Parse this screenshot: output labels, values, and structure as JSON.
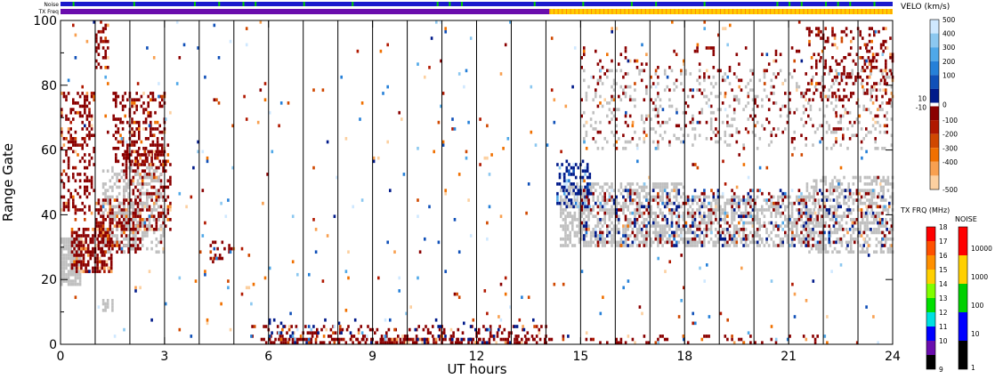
{
  "chart_data": {
    "type": "heatmap",
    "xlabel": "UT hours",
    "ylabel": "Range Gate",
    "xlim": [
      0,
      24
    ],
    "ylim": [
      0,
      100
    ],
    "x_ticks": [
      "0",
      "3",
      "6",
      "9",
      "12",
      "15",
      "18",
      "21",
      "24"
    ],
    "y_ticks": [
      "0",
      "20",
      "40",
      "60",
      "80",
      "100"
    ],
    "gridlines": "vertical lines every hour",
    "status_bars": {
      "noise_label": "Noise",
      "txfreq_label": "TX Freq",
      "txfreq_change_hour": 14.1,
      "txfreq_before_color": "#6a0dad",
      "txfreq_after_color": "#ffcc00"
    },
    "velocity_scale": {
      "title": "VELO (km/s)",
      "ticks": [
        "500",
        "400",
        "300",
        "200",
        "100",
        "0",
        "-100",
        "-200",
        "-300",
        "-400",
        "-500"
      ],
      "side_ticks": [
        "10",
        "-10"
      ],
      "colors": [
        "#cfe8ff",
        "#8cc8f0",
        "#4fa8e8",
        "#2680d8",
        "#1050b8",
        "#001a8a",
        "#ffffff",
        "#8a0000",
        "#b01800",
        "#d04800",
        "#f07000",
        "#f8a050",
        "#fcd0a0"
      ],
      "ground_scatter_color": "#c0c0c0"
    },
    "txfreq_scale": {
      "title": "TX FRQ (MHz)",
      "ticks": [
        "18",
        "17",
        "16",
        "15",
        "14",
        "13",
        "12",
        "11",
        "10",
        "9"
      ],
      "colors": [
        "#ff0000",
        "#ff5000",
        "#ff9000",
        "#ffd000",
        "#80ff00",
        "#00e000",
        "#00e0e0",
        "#0000ff",
        "#6a0dad",
        "#000000"
      ]
    },
    "noise_scale": {
      "title": "NOISE",
      "ticks": [
        "10000",
        "1000",
        "100",
        "10",
        "1"
      ],
      "colors": [
        "#ff0000",
        "#ffd000",
        "#00d000",
        "#0000ff",
        "#000000"
      ]
    },
    "regions": [
      {
        "kind": "ground",
        "x0": 0.0,
        "x1": 0.6,
        "y0": 18,
        "y1": 33,
        "density": 0.85
      },
      {
        "kind": "neg",
        "x0": 0.0,
        "x1": 1.0,
        "y0": 40,
        "y1": 78,
        "density": 0.35
      },
      {
        "kind": "neg",
        "x0": 0.3,
        "x1": 1.5,
        "y0": 22,
        "y1": 36,
        "density": 0.6
      },
      {
        "kind": "neg",
        "x0": 1.0,
        "x1": 2.3,
        "y0": 28,
        "y1": 45,
        "density": 0.5
      },
      {
        "kind": "neg",
        "x0": 1.8,
        "x1": 3.2,
        "y0": 35,
        "y1": 60,
        "density": 0.45
      },
      {
        "kind": "neg",
        "x0": 1.5,
        "x1": 3.0,
        "y0": 55,
        "y1": 78,
        "density": 0.35
      },
      {
        "kind": "ground",
        "x0": 1.2,
        "x1": 3.0,
        "y0": 28,
        "y1": 55,
        "density": 0.3
      },
      {
        "kind": "neg",
        "x0": 1.0,
        "x1": 1.4,
        "y0": 85,
        "y1": 100,
        "density": 0.3
      },
      {
        "kind": "ground",
        "x0": 1.2,
        "x1": 1.5,
        "y0": 10,
        "y1": 14,
        "density": 0.7
      },
      {
        "kind": "neg",
        "x0": 4.3,
        "x1": 5.0,
        "y0": 25,
        "y1": 32,
        "density": 0.3
      },
      {
        "kind": "neg",
        "x0": 5.5,
        "x1": 14.0,
        "y0": 0,
        "y1": 6,
        "density": 0.22
      },
      {
        "kind": "neg",
        "x0": 6.0,
        "x1": 14.0,
        "y0": 0,
        "y1": 2,
        "density": 0.5
      },
      {
        "kind": "pos",
        "x0": 6.0,
        "x1": 14.0,
        "y0": 0,
        "y1": 8,
        "density": 0.05
      },
      {
        "kind": "ground",
        "x0": 14.4,
        "x1": 18.0,
        "y0": 30,
        "y1": 50,
        "density": 0.55
      },
      {
        "kind": "pos",
        "x0": 14.3,
        "x1": 15.3,
        "y0": 42,
        "y1": 57,
        "density": 0.4
      },
      {
        "kind": "ground",
        "x0": 18.0,
        "x1": 21.8,
        "y0": 30,
        "y1": 46,
        "density": 0.5
      },
      {
        "kind": "ground",
        "x0": 21.5,
        "x1": 24.0,
        "y0": 28,
        "y1": 52,
        "density": 0.45
      },
      {
        "kind": "neg",
        "x0": 15.0,
        "x1": 24.0,
        "y0": 30,
        "y1": 48,
        "density": 0.1
      },
      {
        "kind": "pos",
        "x0": 15.0,
        "x1": 24.0,
        "y0": 30,
        "y1": 48,
        "density": 0.08
      },
      {
        "kind": "ground",
        "x0": 15.0,
        "x1": 24.0,
        "y0": 60,
        "y1": 85,
        "density": 0.12
      },
      {
        "kind": "neg",
        "x0": 15.0,
        "x1": 24.0,
        "y0": 62,
        "y1": 92,
        "density": 0.06
      },
      {
        "kind": "neg",
        "x0": 21.5,
        "x1": 24.0,
        "y0": 75,
        "y1": 98,
        "density": 0.2
      },
      {
        "kind": "neg",
        "x0": 14.0,
        "x1": 22.0,
        "y0": 0,
        "y1": 3,
        "density": 0.12
      },
      {
        "kind": "mix",
        "x0": 0.0,
        "x1": 24.0,
        "y0": 0,
        "y1": 100,
        "density": 0.012
      }
    ]
  }
}
